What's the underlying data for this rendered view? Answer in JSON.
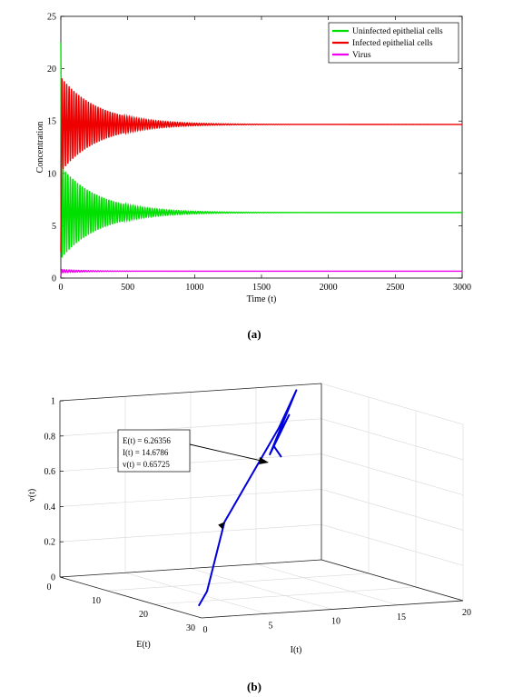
{
  "chart_data": [
    {
      "type": "line",
      "caption": "(a)",
      "xlabel": "Time (t)",
      "ylabel": "Concentration",
      "xlim": [
        0,
        3000
      ],
      "ylim": [
        0,
        25
      ],
      "xticks": [
        0,
        500,
        1000,
        1500,
        2000,
        2500,
        3000
      ],
      "yticks": [
        0,
        5,
        10,
        15,
        20,
        25
      ],
      "grid": false,
      "legend_position": "top-right",
      "series": [
        {
          "name": "Uninfected epithelial cells",
          "color": "#00e000",
          "x": [
            0,
            30,
            60,
            100,
            200,
            300,
            400,
            500,
            600,
            700,
            800,
            900,
            1000,
            1500,
            2000,
            2500,
            3000
          ],
          "y": [
            22.5,
            3.0,
            9.5,
            4.0,
            8.2,
            5.2,
            7.3,
            5.8,
            6.8,
            6.0,
            6.5,
            6.15,
            6.35,
            6.26,
            6.26,
            6.26,
            6.26
          ],
          "amplitude": 4.3,
          "period": 18,
          "decay": 280,
          "center": 6.26
        },
        {
          "name": "Infected epithelial cells",
          "color": "#ee0000",
          "x": [
            0,
            30,
            60,
            100,
            200,
            300,
            400,
            500,
            600,
            700,
            800,
            900,
            1000,
            1500,
            2000,
            2500,
            3000
          ],
          "y": [
            2.5,
            19.2,
            10.5,
            17.5,
            12.5,
            16.5,
            13.5,
            15.8,
            14.0,
            15.3,
            14.4,
            14.9,
            14.6,
            14.68,
            14.68,
            14.68,
            14.68
          ],
          "amplitude": 4.4,
          "period": 18,
          "decay": 280,
          "center": 14.68
        },
        {
          "name": "Virus",
          "color": "#ee00ee",
          "x": [
            0,
            30,
            100,
            300,
            500,
            1000,
            1500,
            2000,
            2500,
            3000
          ],
          "y": [
            0.2,
            0.9,
            0.6,
            0.7,
            0.66,
            0.66,
            0.66,
            0.66,
            0.66,
            0.66
          ],
          "amplitude": 0.15,
          "period": 18,
          "decay": 200,
          "center": 0.66
        }
      ]
    },
    {
      "type": "line3d",
      "caption": "(b)",
      "xlabel": "I(t)",
      "ylabel": "E(t)",
      "zlabel": "v(t)",
      "xlim": [
        0,
        20
      ],
      "ylim": [
        0,
        30
      ],
      "zlim": [
        0,
        1
      ],
      "xticks": [
        0,
        5,
        10,
        15,
        20
      ],
      "yticks": [
        0,
        10,
        20,
        30
      ],
      "zticks": [
        0,
        0.2,
        0.4,
        0.6,
        0.8,
        1
      ],
      "grid": true,
      "annotation": {
        "lines": [
          "E(t) = 6.26356",
          "I(t) = 14.6786",
          "v(t) = 0.65725"
        ]
      },
      "series": [
        {
          "name": "",
          "color": "#0000dd",
          "trajectory": [
            {
              "E": 28,
              "I": 0.5,
              "v": 0.05
            },
            {
              "E": 27,
              "I": 1.5,
              "v": 0.12
            },
            {
              "E": 21,
              "I": 5.0,
              "v": 0.45
            },
            {
              "E": 15,
              "I": 9.0,
              "v": 0.62
            },
            {
              "E": 9,
              "I": 13.5,
              "v": 0.85
            },
            {
              "E": 3,
              "I": 17.0,
              "v": 1.0
            },
            {
              "E": 14,
              "I": 11.0,
              "v": 0.75
            },
            {
              "E": 7,
              "I": 15.0,
              "v": 0.9
            },
            {
              "E": 12,
              "I": 12.0,
              "v": 0.78
            },
            {
              "E": 6.26,
              "I": 14.68,
              "v": 0.657
            }
          ]
        }
      ]
    }
  ]
}
